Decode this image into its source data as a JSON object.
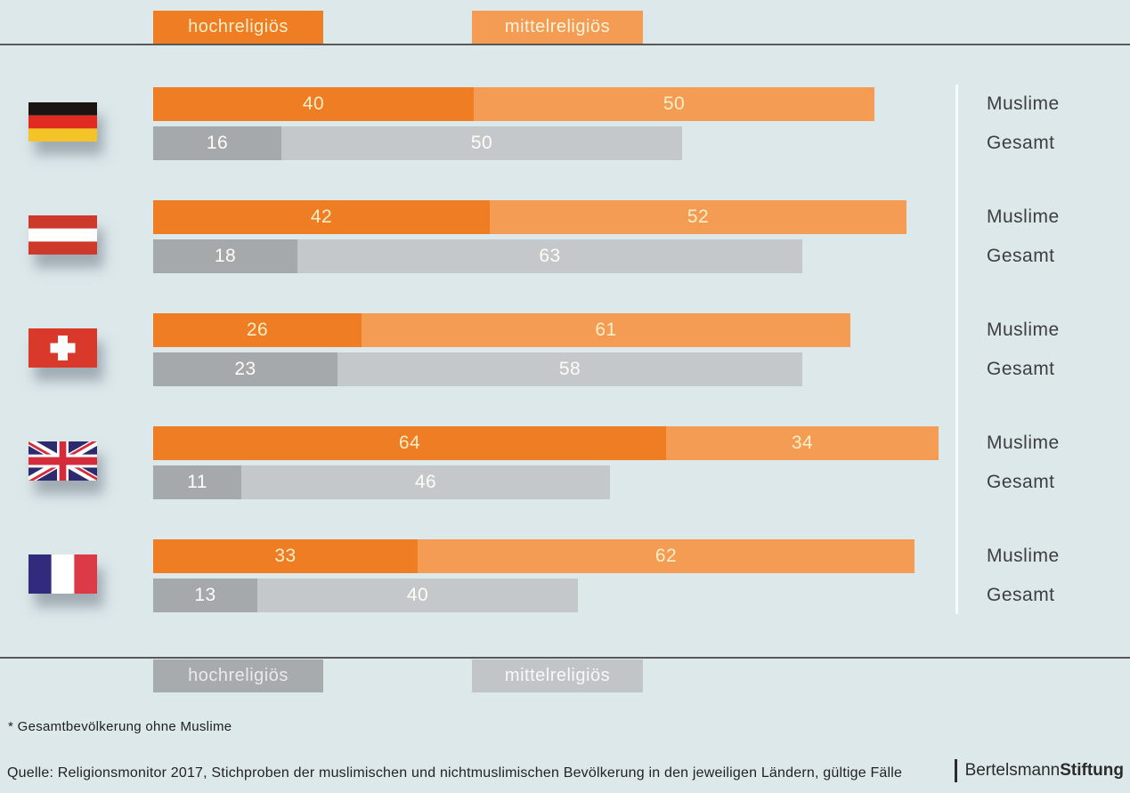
{
  "page": {
    "background": "#dde8eb",
    "rule_color": "#57585a",
    "divider_color": "#f6fafb"
  },
  "legend_top": {
    "items": [
      {
        "label": "hochreligiös",
        "bg": "#ee7d23",
        "text_color": "#f7eec9"
      },
      {
        "label": "mittelreligiös",
        "bg": "#f59c54",
        "text_color": "#fdf4da"
      }
    ]
  },
  "legend_bottom": {
    "items": [
      {
        "label": "hochreligiös",
        "bg": "#a8abad",
        "text_color": "#e8eaeb"
      },
      {
        "label": "mittelreligiös",
        "bg": "#c2c5c7",
        "text_color": "#f7f8f8"
      }
    ]
  },
  "bar_colors": {
    "muslime_hoch": "#ee7d23",
    "muslime_mittel": "#f59c54",
    "gesamt_hoch": "#a6a9ab",
    "gesamt_mittel": "#c5c8ca"
  },
  "row_labels": {
    "muslime": "Muslime",
    "gesamt": "Gesamt"
  },
  "countries": [
    {
      "name": "Deutschland",
      "flag_icon": "germany-flag",
      "muslime_hoch": 40,
      "muslime_mittel": 50,
      "gesamt_hoch": 16,
      "gesamt_mittel": 50
    },
    {
      "name": "Österreich",
      "flag_icon": "austria-flag",
      "muslime_hoch": 42,
      "muslime_mittel": 52,
      "gesamt_hoch": 18,
      "gesamt_mittel": 63
    },
    {
      "name": "Schweiz",
      "flag_icon": "switzerland-flag",
      "muslime_hoch": 26,
      "muslime_mittel": 61,
      "gesamt_hoch": 23,
      "gesamt_mittel": 58
    },
    {
      "name": "Großbritannien",
      "flag_icon": "uk-flag",
      "muslime_hoch": 64,
      "muslime_mittel": 34,
      "gesamt_hoch": 11,
      "gesamt_mittel": 46
    },
    {
      "name": "Frankreich",
      "flag_icon": "france-flag",
      "muslime_hoch": 33,
      "muslime_mittel": 62,
      "gesamt_hoch": 13,
      "gesamt_mittel": 40
    }
  ],
  "chart_data": {
    "type": "bar",
    "orientation": "horizontal",
    "stacked": true,
    "unit": "%",
    "categories": [
      "Deutschland",
      "Österreich",
      "Schweiz",
      "Großbritannien",
      "Frankreich"
    ],
    "groups_per_category": [
      "Muslime",
      "Gesamt"
    ],
    "series": [
      {
        "name": "Muslime hochreligiös",
        "color": "#ee7d23",
        "values": [
          40,
          42,
          26,
          64,
          33
        ]
      },
      {
        "name": "Muslime mittelreligiös",
        "color": "#f59c54",
        "values": [
          50,
          52,
          61,
          34,
          62
        ]
      },
      {
        "name": "Gesamt hochreligiös",
        "color": "#a6a9ab",
        "values": [
          16,
          18,
          23,
          11,
          13
        ]
      },
      {
        "name": "Gesamt mittelreligiös",
        "color": "#c5c8ca",
        "values": [
          50,
          63,
          58,
          46,
          40
        ]
      }
    ],
    "xlim": [
      0,
      100
    ],
    "grid": false,
    "legend_position": "top and bottom",
    "value_labels": "inside segments"
  },
  "footnote": "* Gesamtbevölkerung ohne Muslime",
  "source": "Quelle: Religionsmonitor 2017, Stichproben der muslimischen und nichtmuslimischen Bevölkerung in den jeweiligen Ländern, gültige Fälle",
  "logo": {
    "part_regular": "Bertelsmann",
    "part_bold": "Stiftung"
  }
}
